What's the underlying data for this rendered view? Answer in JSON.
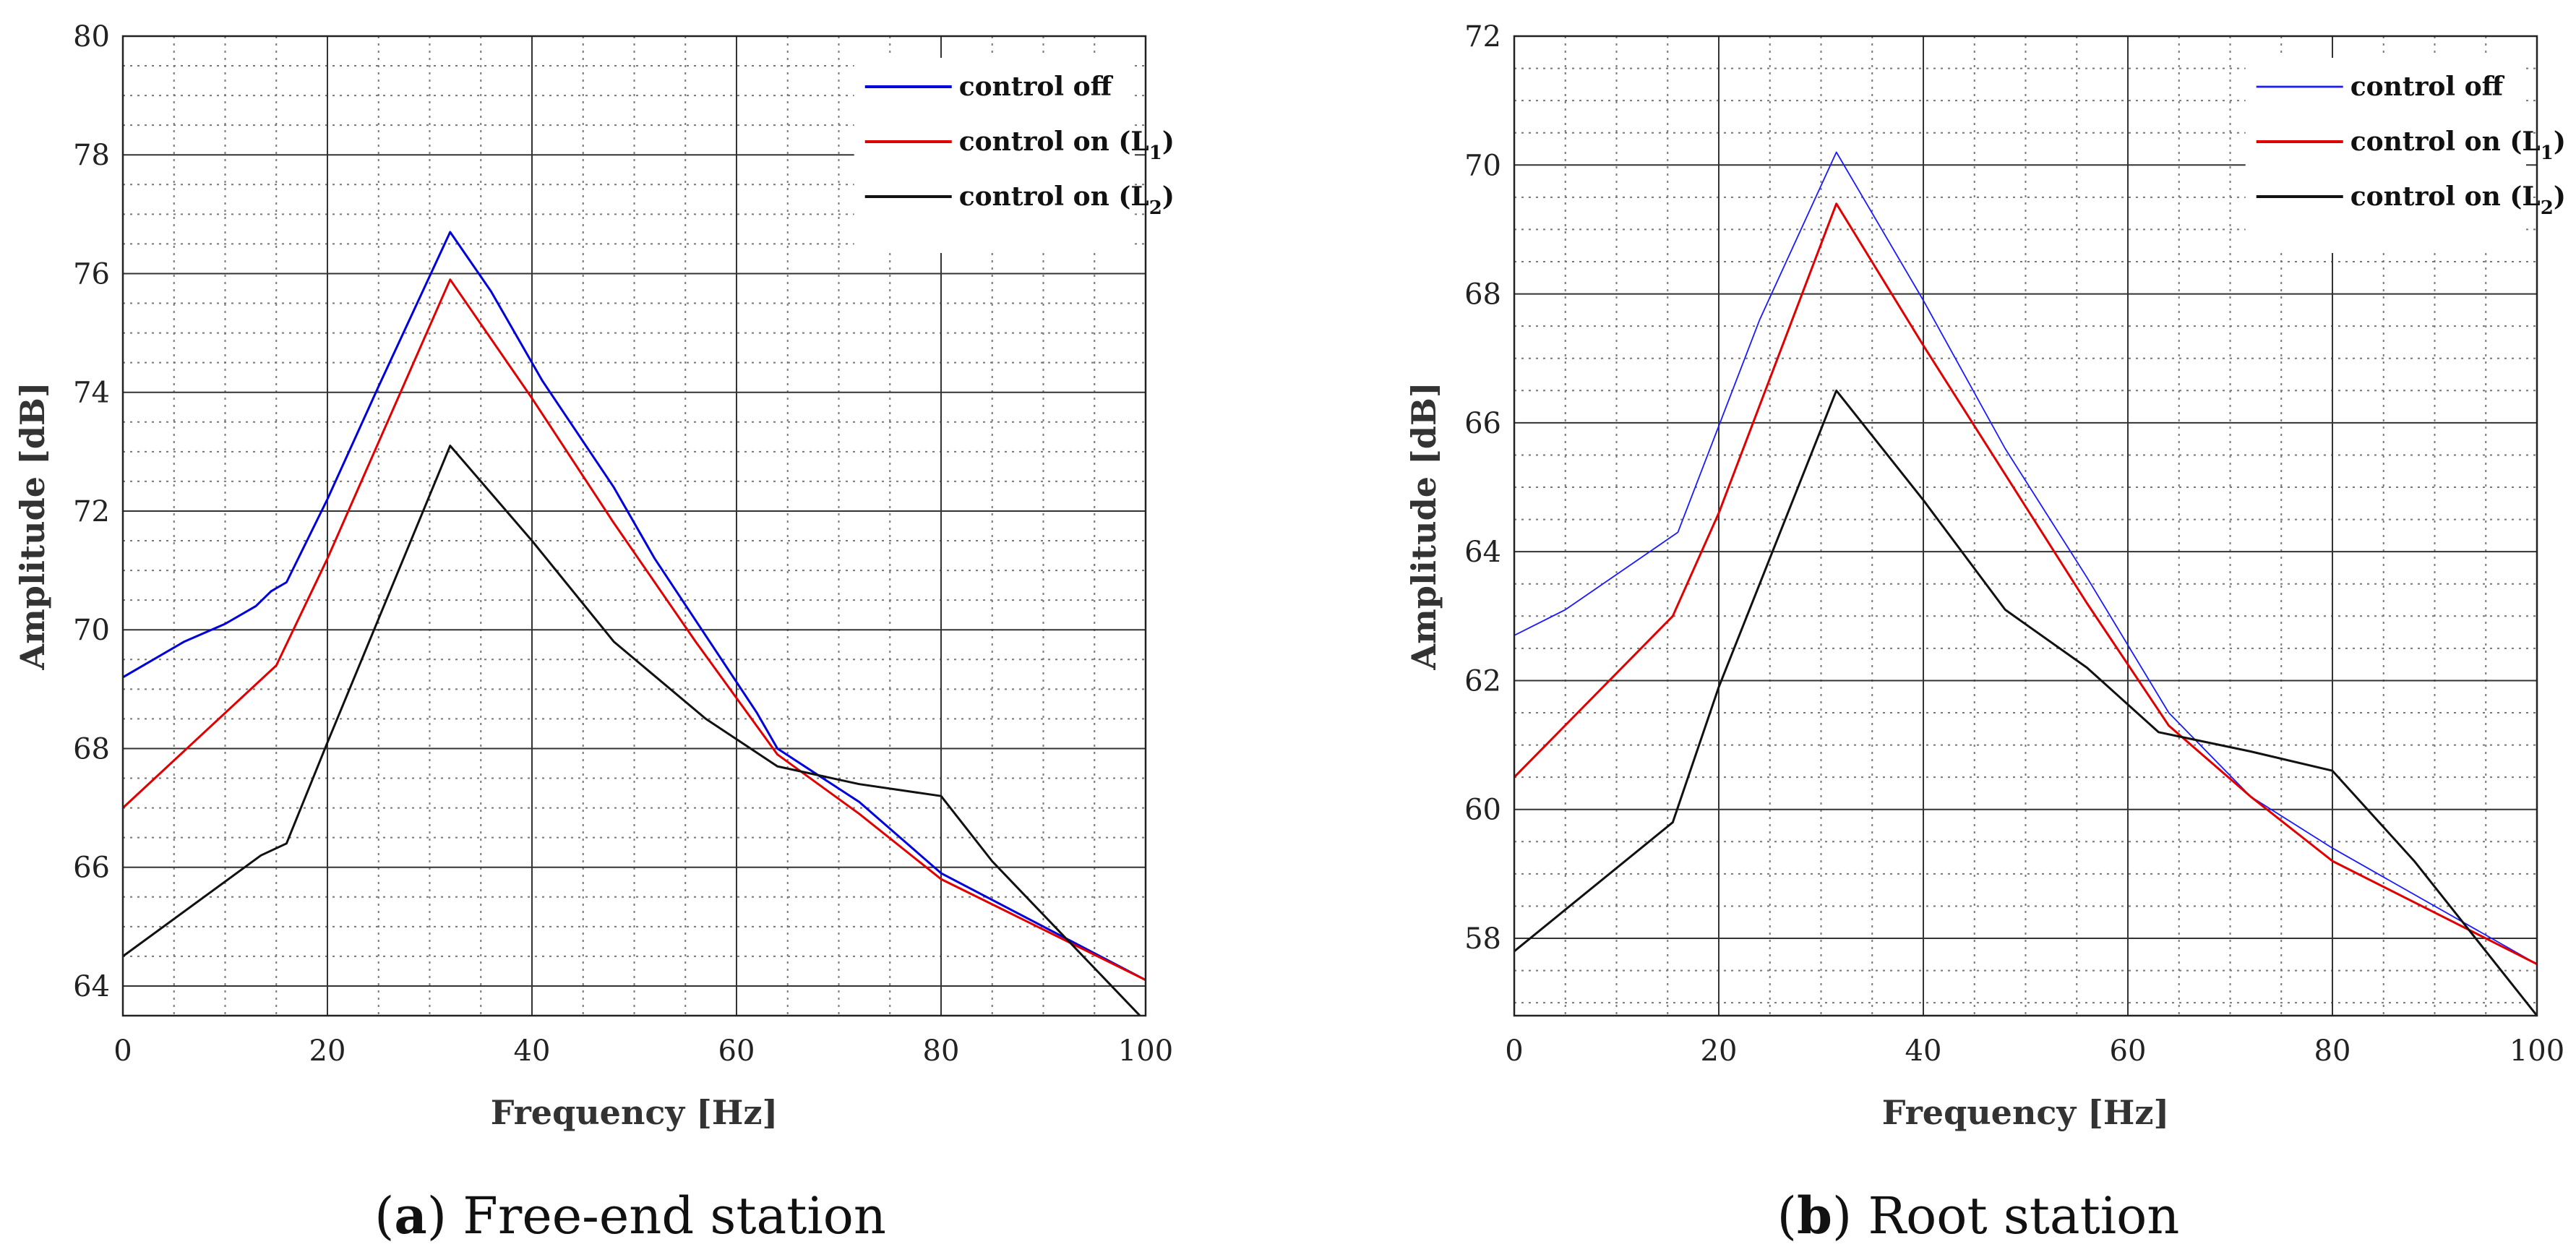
{
  "chart_data": [
    {
      "type": "line",
      "caption_letter": "a",
      "caption_text": " Free-end station",
      "xlabel": "Frequency [Hz]",
      "ylabel": "Amplitude [dB]",
      "xlim": [
        0,
        100
      ],
      "ylim": [
        63.5,
        80
      ],
      "xticks": [
        0,
        20,
        40,
        60,
        80,
        100
      ],
      "yticks": [
        64,
        66,
        68,
        70,
        72,
        74,
        76,
        78,
        80
      ],
      "grid": true,
      "legend_position": "top-right",
      "series": [
        {
          "name": "control off",
          "label_main": "control off",
          "label_sub": "",
          "label_tail": "",
          "color": "#0000dd",
          "width": 3,
          "x": [
            0,
            6,
            10,
            13,
            14.5,
            16,
            20,
            25,
            32,
            36,
            41,
            48,
            52,
            57,
            62,
            64,
            72,
            80,
            100
          ],
          "y": [
            69.2,
            69.8,
            70.1,
            70.4,
            70.65,
            70.8,
            72.2,
            74.1,
            76.7,
            75.7,
            74.2,
            72.4,
            71.2,
            69.9,
            68.6,
            68.0,
            67.1,
            65.9,
            64.1
          ]
        },
        {
          "name": "control on (L1)",
          "label_main": "control on (L",
          "label_sub": "1",
          "label_tail": ")",
          "color": "#e00000",
          "width": 3,
          "x": [
            0,
            15,
            20,
            32,
            40,
            48,
            56,
            64,
            72,
            80,
            100
          ],
          "y": [
            67.0,
            69.4,
            71.2,
            75.9,
            73.9,
            71.8,
            69.8,
            67.9,
            66.9,
            65.8,
            64.1
          ]
        },
        {
          "name": "control on (L2)",
          "label_main": "control on (L",
          "label_sub": "2",
          "label_tail": ")",
          "color": "#111111",
          "width": 3,
          "x": [
            0,
            13.5,
            16,
            20,
            32,
            40,
            48,
            57,
            64,
            72,
            80,
            85,
            100
          ],
          "y": [
            64.5,
            66.2,
            66.4,
            68.1,
            73.1,
            71.5,
            69.8,
            68.5,
            67.7,
            67.4,
            67.2,
            66.1,
            63.4
          ]
        }
      ]
    },
    {
      "type": "line",
      "caption_letter": "b",
      "caption_text": " Root station",
      "xlabel": "Frequency [Hz]",
      "ylabel": "Amplitude [dB]",
      "xlim": [
        0,
        100
      ],
      "ylim": [
        56.8,
        72
      ],
      "xticks": [
        0,
        20,
        40,
        60,
        80,
        100
      ],
      "yticks": [
        58,
        60,
        62,
        64,
        66,
        68,
        70,
        72
      ],
      "grid": true,
      "legend_position": "top-right",
      "series": [
        {
          "name": "control off",
          "label_main": "control off",
          "label_sub": "",
          "label_tail": "",
          "color": "#1a1aff",
          "width": 1.8,
          "x": [
            0,
            5,
            16,
            24,
            31.5,
            40,
            48,
            56,
            64,
            72,
            80,
            100
          ],
          "y": [
            62.7,
            63.1,
            64.3,
            67.6,
            70.2,
            67.9,
            65.6,
            63.6,
            61.5,
            60.2,
            59.4,
            57.6
          ]
        },
        {
          "name": "control on (L1)",
          "label_main": "control on (L",
          "label_sub": "1",
          "label_tail": ")",
          "color": "#e00000",
          "width": 3,
          "x": [
            0,
            15.5,
            20,
            31.5,
            40,
            48,
            56,
            64,
            72,
            80,
            100
          ],
          "y": [
            60.5,
            63.0,
            64.6,
            69.4,
            67.2,
            65.2,
            63.2,
            61.3,
            60.2,
            59.2,
            57.6
          ]
        },
        {
          "name": "control on (L2)",
          "label_main": "control on (L",
          "label_sub": "2",
          "label_tail": ")",
          "color": "#111111",
          "width": 3,
          "x": [
            0,
            15.5,
            20,
            31.5,
            40,
            48,
            56,
            63,
            72,
            80,
            88,
            100
          ],
          "y": [
            57.8,
            59.8,
            61.9,
            66.5,
            64.8,
            63.1,
            62.2,
            61.2,
            60.9,
            60.6,
            59.2,
            56.8
          ]
        }
      ]
    }
  ]
}
